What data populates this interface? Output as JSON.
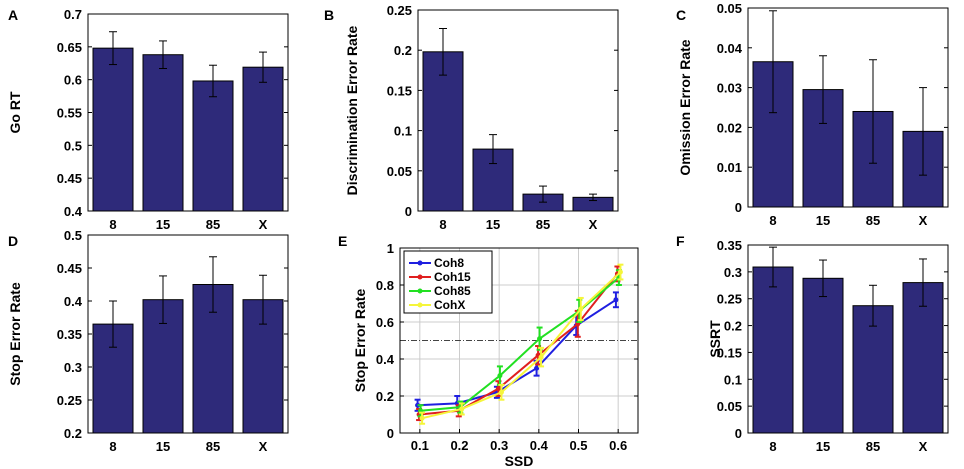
{
  "chart_data": [
    {
      "id": "A",
      "panel_label": "A",
      "type": "bar",
      "categories": [
        "8",
        "15",
        "85",
        "X"
      ],
      "values": [
        0.648,
        0.638,
        0.598,
        0.619
      ],
      "errors": [
        0.025,
        0.021,
        0.024,
        0.023
      ],
      "ylabel": "Go RT",
      "xlabel": "",
      "ylim": [
        0.4,
        0.7
      ],
      "yticks": [
        0.4,
        0.45,
        0.5,
        0.55,
        0.6,
        0.65,
        0.7
      ],
      "ytick_labels": [
        "0.4",
        "0.45",
        "0.5",
        "0.55",
        "0.6",
        "0.65",
        "0.7"
      ],
      "bar_color": "#2e2a7a"
    },
    {
      "id": "B",
      "panel_label": "B",
      "type": "bar",
      "categories": [
        "8",
        "15",
        "85",
        "X"
      ],
      "values": [
        0.198,
        0.077,
        0.021,
        0.017
      ],
      "errors": [
        0.029,
        0.018,
        0.01,
        0.004
      ],
      "ylabel": "Discrimination Error Rate",
      "xlabel": "",
      "ylim": [
        0,
        0.25
      ],
      "yticks": [
        0,
        0.05,
        0.1,
        0.15,
        0.2,
        0.25
      ],
      "ytick_labels": [
        "0",
        "0.05",
        "0.1",
        "0.15",
        "0.2",
        "0.25"
      ],
      "bar_color": "#2e2a7a"
    },
    {
      "id": "C",
      "panel_label": "C",
      "type": "bar",
      "categories": [
        "8",
        "15",
        "85",
        "X"
      ],
      "values": [
        0.0365,
        0.0295,
        0.024,
        0.019
      ],
      "errors": [
        0.0128,
        0.0085,
        0.013,
        0.011
      ],
      "ylabel": "Omission Error Rate",
      "xlabel": "",
      "ylim": [
        0,
        0.05
      ],
      "yticks": [
        0,
        0.01,
        0.02,
        0.03,
        0.04,
        0.05
      ],
      "ytick_labels": [
        "0",
        "0.01",
        "0.02",
        "0.03",
        "0.04",
        "0.05"
      ],
      "bar_color": "#2e2a7a"
    },
    {
      "id": "D",
      "panel_label": "D",
      "type": "bar",
      "categories": [
        "8",
        "15",
        "85",
        "X"
      ],
      "values": [
        0.365,
        0.402,
        0.425,
        0.402
      ],
      "errors": [
        0.035,
        0.036,
        0.042,
        0.037
      ],
      "ylabel": "Stop Error Rate",
      "xlabel": "",
      "ylim": [
        0.2,
        0.5
      ],
      "yticks": [
        0.2,
        0.25,
        0.3,
        0.35,
        0.4,
        0.45,
        0.5
      ],
      "ytick_labels": [
        "0.2",
        "0.25",
        "0.3",
        "0.35",
        "0.4",
        "0.45",
        "0.5"
      ],
      "bar_color": "#2e2a7a"
    },
    {
      "id": "E",
      "panel_label": "E",
      "type": "line",
      "x": [
        0.1,
        0.2,
        0.3,
        0.4,
        0.5,
        0.6
      ],
      "series": [
        {
          "name": "Coh8",
          "color": "#1f1fe0",
          "values": [
            0.15,
            0.16,
            0.22,
            0.35,
            0.58,
            0.72
          ],
          "errors": [
            0.03,
            0.04,
            0.03,
            0.04,
            0.05,
            0.04
          ]
        },
        {
          "name": "Coh15",
          "color": "#e01f1f",
          "values": [
            0.1,
            0.12,
            0.24,
            0.42,
            0.59,
            0.86
          ],
          "errors": [
            0.03,
            0.03,
            0.04,
            0.05,
            0.07,
            0.04
          ]
        },
        {
          "name": "Coh85",
          "color": "#22e022",
          "values": [
            0.12,
            0.14,
            0.31,
            0.51,
            0.66,
            0.84
          ],
          "errors": [
            0.03,
            0.03,
            0.05,
            0.06,
            0.06,
            0.04
          ]
        },
        {
          "name": "CohX",
          "color": "#f5f53a",
          "values": [
            0.08,
            0.13,
            0.22,
            0.41,
            0.67,
            0.87
          ],
          "errors": [
            0.03,
            0.03,
            0.04,
            0.05,
            0.06,
            0.04
          ]
        }
      ],
      "reference_line": 0.5,
      "ylabel": "Stop Error Rate",
      "xlabel": "SSD",
      "xlim": [
        0.05,
        0.65
      ],
      "ylim": [
        0,
        1
      ],
      "xticks": [
        0.1,
        0.2,
        0.3,
        0.4,
        0.5,
        0.6
      ],
      "xtick_labels": [
        "0.1",
        "0.2",
        "0.3",
        "0.4",
        "0.5",
        "0.6"
      ],
      "yticks": [
        0,
        0.2,
        0.4,
        0.6,
        0.8,
        1
      ],
      "ytick_labels": [
        "0",
        "0.2",
        "0.4",
        "0.6",
        "0.8",
        "1"
      ],
      "grid": true,
      "legend": "top-left"
    },
    {
      "id": "F",
      "panel_label": "F",
      "type": "bar",
      "categories": [
        "8",
        "15",
        "85",
        "X"
      ],
      "values": [
        0.309,
        0.288,
        0.237,
        0.28
      ],
      "errors": [
        0.037,
        0.034,
        0.038,
        0.044
      ],
      "ylabel": "SSRT",
      "xlabel": "",
      "ylim": [
        0,
        0.35
      ],
      "yticks": [
        0,
        0.05,
        0.1,
        0.15,
        0.2,
        0.25,
        0.3,
        0.35
      ],
      "ytick_labels": [
        "0",
        "0.05",
        "0.1",
        "0.15",
        "0.2",
        "0.25",
        "0.3",
        "0.35"
      ],
      "bar_color": "#2e2a7a"
    }
  ]
}
